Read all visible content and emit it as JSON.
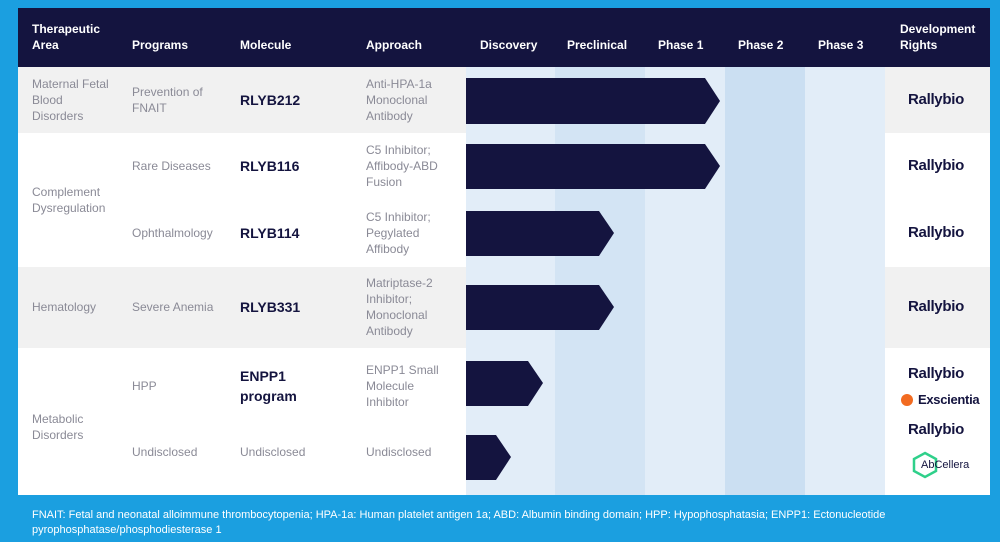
{
  "header": [
    "Therapeutic Area",
    "Programs",
    "Molecule",
    "Approach",
    "Discovery",
    "Preclinical",
    "Phase 1",
    "Phase 2",
    "Phase 3",
    "Development Rights"
  ],
  "groups": [
    {
      "area": "Maternal Fetal Blood Disorders",
      "programs": [
        {
          "program": "Prevention of FNAIT",
          "molecule": "RLYB212",
          "approach": "Anti-HPA-1a Monoclonal Antibody",
          "rights": [
            "Rallybio"
          ]
        }
      ]
    },
    {
      "area": "Complement Dysregulation",
      "programs": [
        {
          "program": "Rare Diseases",
          "molecule": "RLYB116",
          "approach": "C5 Inhibitor; Affibody-ABD Fusion",
          "rights": [
            "Rallybio"
          ]
        },
        {
          "program": "Ophthalmology",
          "molecule": "RLYB114",
          "approach": "C5 Inhibitor; Pegylated Affibody",
          "rights": [
            "Rallybio"
          ]
        }
      ]
    },
    {
      "area": "Hematology",
      "programs": [
        {
          "program": "Severe Anemia",
          "molecule": "RLYB331",
          "approach": "Matriptase-2 Inhibitor; Monoclonal Antibody",
          "rights": [
            "Rallybio"
          ]
        }
      ]
    },
    {
      "area": "Metabolic Disorders",
      "programs": [
        {
          "program": "HPP",
          "molecule": "ENPP1 program",
          "approach": "ENPP1 Small Molecule Inhibitor",
          "rights": [
            "Rallybio",
            "Exscientia"
          ]
        },
        {
          "program": "Undisclosed",
          "molecule": "Undisclosed",
          "approach": "Undisclosed",
          "rights": [
            "Rallybio",
            "AbCellera"
          ]
        }
      ]
    }
  ],
  "footer": "FNAIT: Fetal and neonatal alloimmune thrombocytopenia;   HPA-1a: Human platelet antigen 1a;   ABD: Albumin binding domain;   HPP: Hypophosphatasia;   ENPP1: Ectonucleotide pyrophosphatase/phosphodiesterase 1"
}
